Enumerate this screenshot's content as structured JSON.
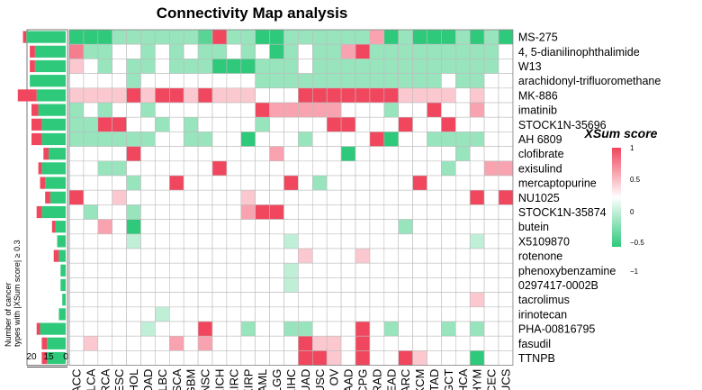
{
  "chart_data": {
    "type": "heatmap",
    "title": "Connectivity Map analysis",
    "side_bar_ylabel": "Number of cancer types with |XSum score| ≥ 0.3",
    "side_bar_ticks": [
      "20",
      "15",
      "0"
    ],
    "legend": {
      "title": "XSum score",
      "ticks": [
        "1",
        "0.5",
        "0",
        "−0.5",
        "−1"
      ],
      "range": [
        -1,
        1
      ],
      "colors": {
        "positive": "#f0475e",
        "zero": "#ffffff",
        "negative": "#2ec97a"
      }
    },
    "columns": [
      "ACC",
      "BLCA",
      "BRCA",
      "CESC",
      "CHOL",
      "COAD",
      "DLBC",
      "ESCA",
      "GBM",
      "HNSC",
      "KICH",
      "KIRC",
      "KIRP",
      "LAML",
      "LGG",
      "LIHC",
      "LUAD",
      "LUSC",
      "OV",
      "PAAD",
      "PCPG",
      "PRAD",
      "READ",
      "SARC",
      "SKCM",
      "STAD",
      "TGCT",
      "THCA",
      "THYM",
      "UCEC",
      "UCS"
    ],
    "rows": [
      "MS-275",
      "4, 5-dianilinophthalimide",
      "W13",
      "arachidonyl-trifluoromethane",
      "MK-886",
      "imatinib",
      "STOCK1N-35696",
      "AH 6809",
      "clofibrate",
      "exisulind",
      "mercaptopurine",
      "NU1025",
      "STOCK1N-35874",
      "butein",
      "X5109870",
      "rotenone",
      "phenoxybenzamine",
      "0297417-0002B",
      "tacrolimus",
      "irinotecan",
      "PHA-00816795",
      "fasudil",
      "TTNPB"
    ],
    "bar_negative": [
      23,
      18,
      18,
      21,
      17,
      16,
      14,
      14,
      10,
      14,
      12,
      9,
      14,
      6,
      5,
      4,
      3,
      3,
      2,
      4,
      15,
      11,
      11
    ],
    "bar_positive": [
      2,
      3,
      3,
      0,
      11,
      4,
      6,
      6,
      3,
      2,
      3,
      3,
      3,
      2,
      0,
      3,
      0,
      0,
      0,
      0,
      2,
      3,
      3
    ],
    "values": [
      [
        -1,
        -1,
        -1,
        -0.5,
        -0.5,
        -0.5,
        -0.5,
        -0.5,
        -0.5,
        -0.8,
        1,
        -0.5,
        -0.5,
        -1,
        -1,
        -0.5,
        -0.5,
        -0.5,
        -0.5,
        -0.5,
        -0.5,
        0.5,
        -1,
        -0.5,
        -1,
        -1,
        -1,
        -0.5,
        -1,
        -0.5,
        -1
      ],
      [
        0.7,
        -0.5,
        -0.5,
        0,
        0,
        -0.5,
        0,
        -0.5,
        0,
        -0.5,
        -0.5,
        0,
        -0.5,
        0,
        -1,
        -0.5,
        0,
        -0.5,
        -0.5,
        0.5,
        1,
        -0.5,
        -0.5,
        -0.5,
        -0.5,
        -0.5,
        -0.5,
        -0.5,
        -0.5,
        -0.5,
        0
      ],
      [
        0.3,
        0,
        -0.5,
        0,
        -0.5,
        -0.5,
        0,
        -0.5,
        -0.5,
        -0.5,
        -1,
        -1,
        -1,
        -0.5,
        -0.5,
        -0.5,
        0,
        -0.5,
        -0.5,
        -0.5,
        -0.5,
        -0.5,
        -0.5,
        -0.5,
        -0.5,
        -0.5,
        -0.5,
        -0.5,
        -0.5,
        -0.5,
        0
      ],
      [
        0,
        0,
        0,
        0,
        -0.5,
        0,
        0,
        0,
        0,
        0,
        0,
        0,
        0,
        -0.5,
        -0.5,
        -0.5,
        -0.5,
        -0.5,
        -0.5,
        -0.5,
        -0.5,
        -0.5,
        -0.5,
        -0.5,
        -0.5,
        -0.5,
        0,
        -0.5,
        -0.5,
        0,
        0
      ],
      [
        0.3,
        0.3,
        0.3,
        0.3,
        1,
        0.3,
        1,
        1,
        0.3,
        1,
        0.3,
        0.3,
        0.3,
        0,
        0,
        0,
        1,
        1,
        1,
        1,
        1,
        1,
        1,
        0.3,
        0.3,
        0.3,
        0.3,
        0,
        0.3,
        0,
        0
      ],
      [
        -0.5,
        0,
        -0.5,
        0,
        0,
        -0.5,
        0,
        0,
        0,
        0,
        0,
        0,
        0,
        1,
        0.5,
        0.5,
        0.5,
        0.5,
        0.5,
        0,
        0,
        0,
        -0.5,
        0,
        0,
        1,
        0,
        0,
        0.5,
        0,
        0
      ],
      [
        -0.5,
        -0.5,
        1,
        1,
        0,
        0,
        -0.5,
        0,
        -0.5,
        0,
        0,
        0,
        0,
        -0.5,
        0,
        0,
        0,
        0,
        1,
        1,
        0,
        0,
        0,
        1,
        0,
        0,
        1,
        0,
        0,
        0,
        0
      ],
      [
        -0.5,
        -0.5,
        -0.5,
        -0.5,
        -0.5,
        -0.5,
        0,
        0,
        -0.5,
        -0.5,
        0,
        0,
        -1,
        0,
        0,
        0,
        -0.5,
        0,
        0,
        0,
        0,
        1,
        -1,
        0,
        0,
        -0.5,
        -0.5,
        -0.5,
        -0.5,
        0,
        0
      ],
      [
        0,
        0,
        0,
        0,
        1,
        0,
        0,
        0,
        0,
        0,
        0,
        0,
        0,
        0,
        0.5,
        0,
        0,
        0,
        0,
        -1,
        0,
        0,
        0,
        0,
        0,
        0,
        0,
        -0.5,
        0,
        0,
        0
      ],
      [
        0,
        0,
        -0.5,
        -0.5,
        0,
        0,
        0,
        0,
        0,
        0,
        1,
        0,
        0,
        0,
        0,
        0,
        0,
        0,
        0,
        0,
        0,
        0,
        0,
        0,
        0,
        0,
        -0.5,
        0,
        0,
        0.5,
        0.5
      ],
      [
        0,
        0,
        0,
        0,
        -0.5,
        0,
        0,
        1,
        0,
        0,
        0,
        0,
        0,
        0,
        0,
        1,
        0,
        -0.5,
        0,
        0,
        0,
        0,
        0,
        0,
        1,
        0,
        0,
        0,
        0,
        0,
        0
      ],
      [
        1,
        0,
        0,
        0.3,
        0,
        0,
        0,
        0,
        0,
        0,
        0,
        0,
        0.3,
        0,
        0,
        0,
        0,
        0,
        0,
        0,
        0,
        0,
        0,
        0,
        0,
        0,
        0,
        0,
        1,
        0,
        1
      ],
      [
        0,
        -0.5,
        0,
        0,
        -0.5,
        0,
        0,
        0,
        0,
        0,
        0,
        0,
        0.5,
        1,
        1,
        0,
        0,
        0,
        0,
        0,
        0,
        0,
        0,
        0,
        0,
        0,
        0,
        0,
        0,
        0,
        0
      ],
      [
        0,
        0,
        0.5,
        0,
        -1,
        0,
        0,
        0,
        0,
        0,
        0,
        0,
        0,
        0,
        0,
        0,
        0,
        0,
        0,
        0,
        0,
        0,
        0,
        -0.5,
        0,
        0,
        0,
        0,
        0,
        0,
        0
      ],
      [
        0,
        0,
        0,
        0,
        -0.3,
        0,
        0,
        0,
        0,
        0,
        0,
        0,
        0,
        0,
        0,
        -0.3,
        0,
        0,
        0,
        0,
        0,
        0,
        0,
        0,
        0,
        0,
        0,
        0,
        -0.3,
        0,
        0
      ],
      [
        0,
        0,
        0,
        0,
        0,
        0,
        0,
        0,
        0,
        0,
        0,
        0,
        0,
        0,
        0,
        0,
        0.3,
        0,
        0,
        0,
        0.3,
        0,
        0,
        0,
        0,
        0,
        0,
        0,
        0,
        0,
        0
      ],
      [
        0,
        0,
        0,
        0,
        0,
        0,
        0,
        0,
        0,
        0,
        0,
        0,
        0,
        0,
        0,
        -0.3,
        0,
        0,
        0,
        0,
        0,
        0,
        0,
        0,
        0,
        0,
        0,
        0,
        0,
        0,
        0
      ],
      [
        0,
        0,
        0,
        0,
        0,
        0,
        0,
        0,
        0,
        0,
        0,
        0,
        0,
        0,
        0,
        -0.3,
        0,
        0,
        0,
        0,
        0,
        0,
        0,
        0,
        0,
        0,
        0,
        0,
        0,
        0,
        0
      ],
      [
        0,
        0,
        0,
        0,
        0,
        0,
        0,
        0,
        0,
        0,
        0,
        0,
        0,
        0,
        0,
        0,
        0,
        0,
        0,
        0,
        0,
        0,
        0,
        0,
        0,
        0,
        0,
        0,
        0.3,
        0,
        0
      ],
      [
        0,
        0,
        0,
        0,
        0,
        0,
        -0.3,
        0,
        0,
        0,
        0,
        0,
        0,
        0,
        0,
        0,
        0,
        0,
        0,
        0,
        0,
        0,
        0,
        0,
        0,
        0,
        0,
        0,
        0,
        0,
        0
      ],
      [
        0,
        0,
        0,
        0,
        0,
        -0.3,
        0,
        0,
        0,
        1,
        0,
        0,
        -0.5,
        0,
        0,
        -0.5,
        -0.5,
        0,
        0,
        0,
        1,
        0,
        -0.5,
        0,
        0,
        0,
        -0.5,
        0,
        -0.5,
        0,
        0
      ],
      [
        0,
        0.3,
        0,
        0,
        0,
        0,
        0,
        0.5,
        0,
        0.5,
        0,
        0,
        0,
        0,
        0,
        0,
        1,
        0.3,
        0.3,
        0,
        1,
        0,
        0,
        0,
        0,
        0,
        0,
        0,
        0,
        0,
        0
      ],
      [
        0,
        0,
        0,
        0,
        0,
        0,
        0,
        0,
        0,
        0,
        0,
        0,
        0,
        0,
        0,
        0,
        1,
        1,
        0.3,
        0,
        1,
        0,
        0,
        1,
        0.3,
        0,
        0,
        0,
        -1,
        0,
        0
      ]
    ]
  }
}
